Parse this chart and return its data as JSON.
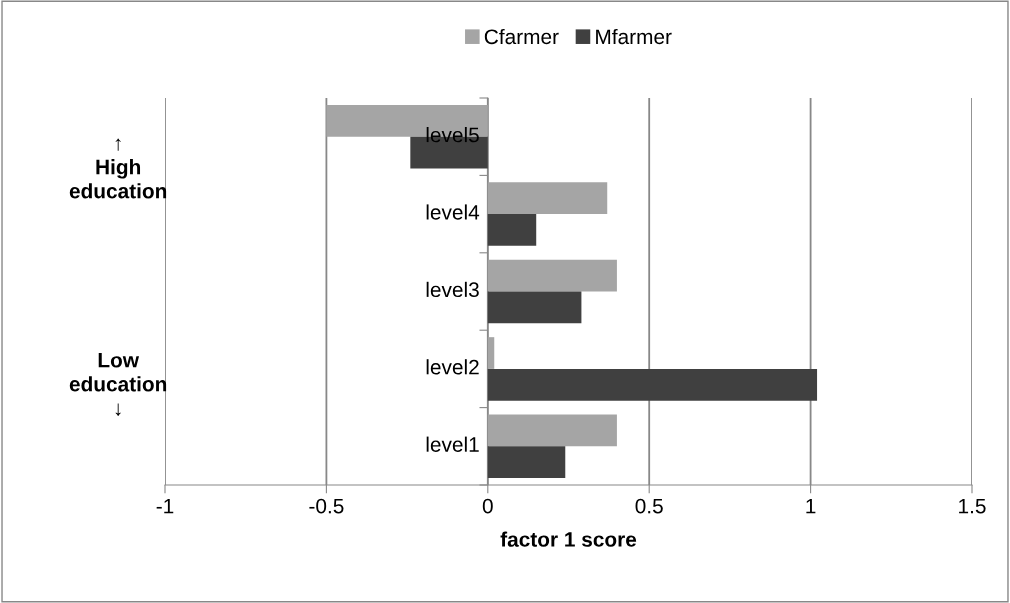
{
  "chart_data": {
    "type": "bar",
    "orientation": "horizontal",
    "xlabel": "factor 1 score",
    "categories": [
      "level5",
      "level4",
      "level3",
      "level2",
      "level1"
    ],
    "series": [
      {
        "name": "Cfarmer",
        "color": "#a5a5a5",
        "values": [
          -0.5,
          0.37,
          0.4,
          0.02,
          0.4
        ]
      },
      {
        "name": "Mfarmer",
        "color": "#404040",
        "values": [
          -0.24,
          0.15,
          0.29,
          1.02,
          0.24
        ]
      }
    ],
    "xlim": [
      -1,
      1.5
    ],
    "xticks": [
      -1,
      -0.5,
      0,
      0.5,
      1,
      1.5
    ],
    "grid": "x",
    "legend": "top",
    "annotations": [
      "↑\nHigh\neducation",
      "Low\neducation\n↓"
    ]
  }
}
